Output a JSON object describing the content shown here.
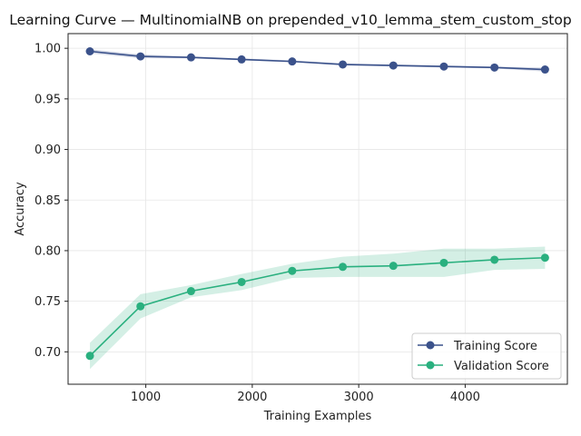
{
  "chart_data": {
    "type": "line",
    "title": "Learning Curve — MultinomialNB on prepended_v10_lemma_stem_custom_stop",
    "xlabel": "Training Examples",
    "ylabel": "Accuracy",
    "xlim": [
      270,
      4960
    ],
    "ylim": [
      0.668,
      1.0145
    ],
    "x_ticks": [
      1000,
      2000,
      3000,
      4000
    ],
    "x_tick_labels": [
      "1000",
      "2000",
      "3000",
      "4000"
    ],
    "y_ticks": [
      0.7,
      0.75,
      0.8,
      0.85,
      0.9,
      0.95,
      1.0
    ],
    "y_tick_labels": [
      "0.70",
      "0.75",
      "0.80",
      "0.85",
      "0.90",
      "0.95",
      "1.00"
    ],
    "grid": true,
    "legend_position": "bottom-right",
    "x": [
      475,
      950,
      1425,
      1900,
      2375,
      2850,
      3325,
      3800,
      4275,
      4750
    ],
    "series": [
      {
        "name": "Training Score",
        "color": "#3b528b",
        "values": [
          0.997,
          0.992,
          0.991,
          0.989,
          0.987,
          0.984,
          0.983,
          0.982,
          0.981,
          0.979
        ],
        "band_upper": [
          0.999,
          0.994,
          0.992,
          0.99,
          0.988,
          0.985,
          0.984,
          0.983,
          0.982,
          0.981
        ],
        "band_lower": [
          0.995,
          0.99,
          0.99,
          0.988,
          0.986,
          0.983,
          0.982,
          0.981,
          0.98,
          0.977
        ]
      },
      {
        "name": "Validation Score",
        "color": "#2ab07f",
        "values": [
          0.696,
          0.745,
          0.76,
          0.769,
          0.78,
          0.784,
          0.785,
          0.788,
          0.791,
          0.793
        ],
        "band_upper": [
          0.709,
          0.757,
          0.766,
          0.777,
          0.787,
          0.794,
          0.797,
          0.802,
          0.802,
          0.804
        ],
        "band_lower": [
          0.683,
          0.733,
          0.754,
          0.761,
          0.773,
          0.774,
          0.774,
          0.774,
          0.781,
          0.782
        ]
      }
    ]
  }
}
